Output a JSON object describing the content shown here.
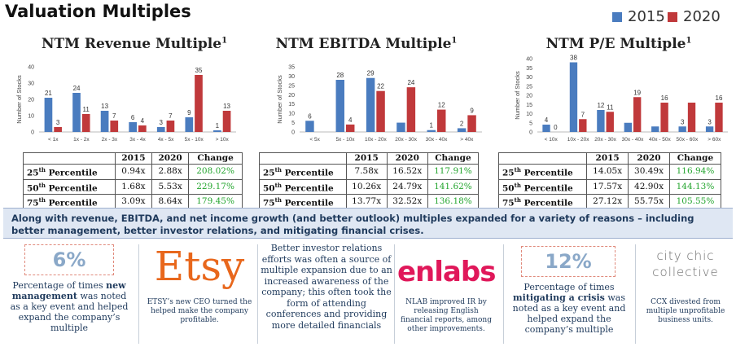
{
  "title": "Valuation Multiples",
  "legend": [
    {
      "label": "2015",
      "color": "#4a7cbf"
    },
    {
      "label": "2020",
      "color": "#c0393b"
    }
  ],
  "chart_data": [
    {
      "type": "bar",
      "title": "NTM Revenue Multiple",
      "footnote": "1",
      "ylabel": "Number of Stocks",
      "ylim": [
        0,
        40
      ],
      "yticks": [
        0,
        10,
        20,
        30,
        40
      ],
      "categories": [
        "< 1x",
        "1x - 2x",
        "2x - 3x",
        "3x - 4x",
        "4x - 5x",
        "5x - 10x",
        "> 10x"
      ],
      "series": [
        {
          "name": "2015",
          "values": [
            21,
            24,
            13,
            6,
            3,
            9,
            1
          ]
        },
        {
          "name": "2020",
          "values": [
            3,
            11,
            7,
            4,
            7,
            35,
            13
          ]
        }
      ]
    },
    {
      "type": "bar",
      "title": "NTM EBITDA Multiple",
      "footnote": "1",
      "ylabel": "Number of Stocks",
      "ylim": [
        0,
        35
      ],
      "yticks": [
        0,
        5,
        10,
        15,
        20,
        25,
        30,
        35
      ],
      "categories": [
        "< 5x",
        "5x - 10x",
        "10x - 20x",
        "20x - 30x",
        "30x - 40x",
        "> 40x"
      ],
      "series": [
        {
          "name": "2015",
          "values": [
            6,
            28,
            29,
            5,
            1,
            2
          ]
        },
        {
          "name": "2020",
          "values": [
            0,
            4,
            22,
            24,
            12,
            9
          ]
        }
      ],
      "value_labels": [
        [
          "6",
          "28",
          "29",
          "",
          "1",
          "2"
        ],
        [
          "",
          "4",
          "22",
          "24",
          "12",
          "9"
        ]
      ]
    },
    {
      "type": "bar",
      "title": "NTM P/E Multiple",
      "footnote": "1",
      "ylabel": "Number of Stocks",
      "ylim": [
        0,
        40
      ],
      "yticks": [
        0,
        5,
        10,
        15,
        20,
        25,
        30,
        35,
        40
      ],
      "categories": [
        "< 10x",
        "10x - 20x",
        "20x - 30x",
        "30x - 40x",
        "40x - 50x",
        "50x - 60x",
        "> 60x"
      ],
      "series": [
        {
          "name": "2015",
          "values": [
            4,
            38,
            12,
            5,
            3,
            3,
            3
          ]
        },
        {
          "name": "2020",
          "values": [
            0,
            7,
            11,
            19,
            16,
            16,
            16
          ]
        }
      ],
      "value_labels": [
        [
          "4",
          "38",
          "12",
          "",
          "",
          "3",
          "3"
        ],
        [
          "0",
          "7",
          "11",
          "19",
          "16",
          "",
          "16"
        ]
      ]
    }
  ],
  "tables": [
    {
      "headers": [
        "",
        "2015",
        "2020",
        "Change"
      ],
      "rows": [
        {
          "label": "25",
          "sup": "th",
          "label_rest": " Percentile",
          "v2015": "0.94x",
          "v2020": "2.88x",
          "change": "208.02%"
        },
        {
          "label": "50",
          "sup": "th",
          "label_rest": " Percentile",
          "v2015": "1.68x",
          "v2020": "5.53x",
          "change": "229.17%"
        },
        {
          "label": "75",
          "sup": "th",
          "label_rest": " Percentile",
          "v2015": "3.09x",
          "v2020": "8.64x",
          "change": "179.45%"
        }
      ]
    },
    {
      "headers": [
        "",
        "2015",
        "2020",
        "Change"
      ],
      "rows": [
        {
          "label": "25",
          "sup": "th",
          "label_rest": " Percentile",
          "v2015": "7.58x",
          "v2020": "16.52x",
          "change": "117.91%"
        },
        {
          "label": "50",
          "sup": "th",
          "label_rest": " Percentile",
          "v2015": "10.26x",
          "v2020": "24.79x",
          "change": "141.62%"
        },
        {
          "label": "75",
          "sup": "th",
          "label_rest": " Percentile",
          "v2015": "13.77x",
          "v2020": "32.52x",
          "change": "136.18%"
        }
      ]
    },
    {
      "headers": [
        "",
        "2015",
        "2020",
        "Change"
      ],
      "rows": [
        {
          "label": "25",
          "sup": "th",
          "label_rest": " Percentile",
          "v2015": "14.05x",
          "v2020": "30.49x",
          "change": "116.94%"
        },
        {
          "label": "50",
          "sup": "th",
          "label_rest": " Percentile",
          "v2015": "17.57x",
          "v2020": "42.90x",
          "change": "144.13%"
        },
        {
          "label": "75",
          "sup": "th",
          "label_rest": " Percentile",
          "v2015": "27.12x",
          "v2020": "55.75x",
          "change": "105.55%"
        }
      ]
    }
  ],
  "summary": "Along with revenue, EBITDA, and net income growth (and better outlook) multiples expanded for a variety of reasons – including better management, better investor relations, and mitigating financial crises.",
  "stat_left": {
    "value": "6%",
    "text_pre": "Percentage of times ",
    "text_bold": "new management",
    "text_post": " was noted as a key event and helped expand the company’s multiple"
  },
  "etsy": {
    "logo": "Etsy",
    "logo_color": "#e8671c",
    "caption": "ETSY’s new CEO turned the helped make the company profitable."
  },
  "middle_text": "Better investor relations efforts was often a source of multiple expansion due to an increased awareness of the company; this often took the form of attending conferences and providing more detailed financials",
  "nlab": {
    "logo": "enlabs",
    "logo_color": "#e0185a",
    "caption": "NLAB improved IR by releasing English financial reports, among other improvements."
  },
  "stat_right": {
    "value": "12%",
    "text_pre": "Percentage of times ",
    "text_bold": "mitigating a crisis",
    "text_post": " was noted as a key event and helped expand the company’s multiple"
  },
  "cityChic": {
    "logo_line1": "city chic",
    "logo_line2": "collective",
    "caption": "CCX divested from multiple unprofitable business units."
  }
}
